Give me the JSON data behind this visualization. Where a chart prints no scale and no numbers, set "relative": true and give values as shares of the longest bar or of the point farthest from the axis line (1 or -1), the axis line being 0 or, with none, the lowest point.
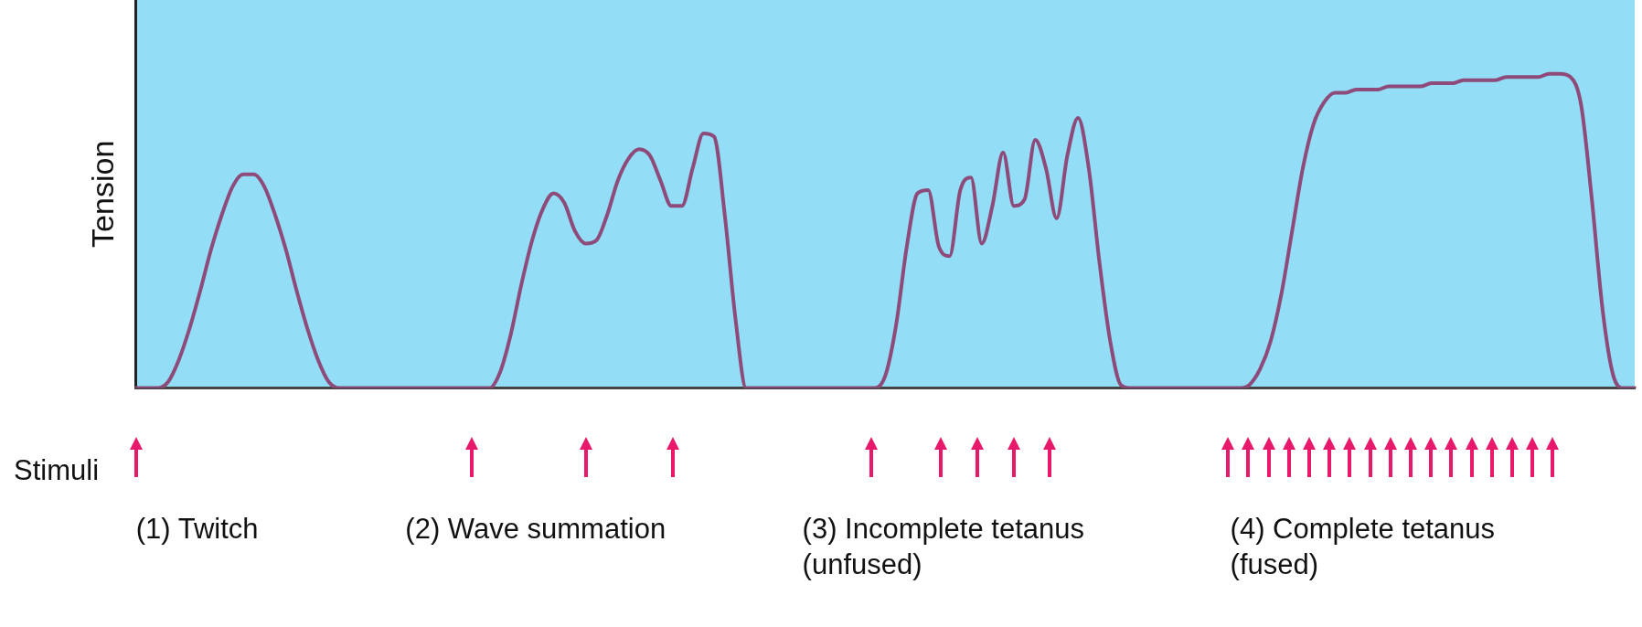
{
  "chart_data": {
    "type": "line",
    "relative": true,
    "ylabel": "Tension",
    "grid": false,
    "legend": false,
    "marker": "none",
    "line_style": "solid",
    "categories": [
      null,
      null,
      null,
      null,
      null,
      null,
      null,
      null,
      null,
      null,
      null,
      null,
      null,
      null,
      null,
      null,
      null,
      null,
      null,
      null,
      null,
      null,
      null,
      null,
      null,
      null,
      null,
      null,
      null,
      null,
      null,
      null,
      null,
      null,
      null,
      null,
      null,
      null,
      null,
      null,
      null,
      null,
      null,
      null,
      null,
      null,
      null,
      null,
      null,
      null,
      null,
      null,
      null,
      null,
      null,
      null,
      null,
      null,
      null,
      null,
      null,
      null,
      null,
      null,
      null,
      null,
      null,
      null,
      null,
      null,
      null,
      null,
      null,
      null,
      null,
      null,
      null,
      null,
      null,
      null,
      null,
      null,
      null,
      null,
      null,
      null,
      null,
      null,
      null,
      null,
      null,
      null,
      null,
      null,
      null,
      null,
      null,
      null,
      null,
      null,
      null,
      null,
      null,
      null,
      null,
      null,
      null,
      null,
      null,
      null,
      null,
      null,
      null,
      null,
      null,
      null,
      null,
      null,
      null,
      null,
      null,
      null,
      null,
      null,
      null,
      null,
      null,
      null,
      null,
      null,
      null,
      null,
      null,
      null,
      null,
      null,
      null,
      null,
      null,
      null,
      null
    ],
    "series": [
      {
        "color": "#8e4b7a",
        "values": [
          0,
          0,
          0,
          0.02,
          0.09,
          0.19,
          0.31,
          0.44,
          0.55,
          0.64,
          0.68,
          0.68,
          0.64,
          0.55,
          0.44,
          0.31,
          0.19,
          0.09,
          0.02,
          0,
          0,
          0,
          0,
          0,
          0,
          0,
          0,
          0,
          0,
          0,
          0,
          0,
          0,
          0,
          0.05,
          0.17,
          0.33,
          0.47,
          0.57,
          0.62,
          0.59,
          0.5,
          0.46,
          0.47,
          0.55,
          0.66,
          0.73,
          0.76,
          0.74,
          0.66,
          0.58,
          0.58,
          0.7,
          0.81,
          0.8,
          0.55,
          0.22,
          0,
          0,
          0,
          0,
          0,
          0,
          0,
          0,
          0,
          0,
          0,
          0,
          0,
          0.04,
          0.2,
          0.45,
          0.62,
          0.63,
          0.45,
          0.42,
          0.63,
          0.67,
          0.46,
          0.58,
          0.75,
          0.58,
          0.6,
          0.79,
          0.7,
          0.54,
          0.74,
          0.86,
          0.7,
          0.4,
          0.15,
          0.01,
          0,
          0,
          0,
          0,
          0,
          0,
          0,
          0,
          0,
          0,
          0,
          0.01,
          0.06,
          0.15,
          0.3,
          0.5,
          0.7,
          0.84,
          0.91,
          0.94,
          0.94,
          0.95,
          0.95,
          0.95,
          0.96,
          0.96,
          0.96,
          0.96,
          0.97,
          0.97,
          0.97,
          0.98,
          0.98,
          0.98,
          0.98,
          0.99,
          0.99,
          0.99,
          0.99,
          1.0,
          1.0,
          0.99,
          0.9,
          0.6,
          0.25,
          0.04,
          0,
          0
        ]
      }
    ],
    "annotations": [
      "Stimuli",
      "(1) Twitch",
      "(2) Wave summation",
      "(3) Incomplete tetanus\n(unfused)",
      "(4) Complete tetanus\n(fused)"
    ]
  }
}
